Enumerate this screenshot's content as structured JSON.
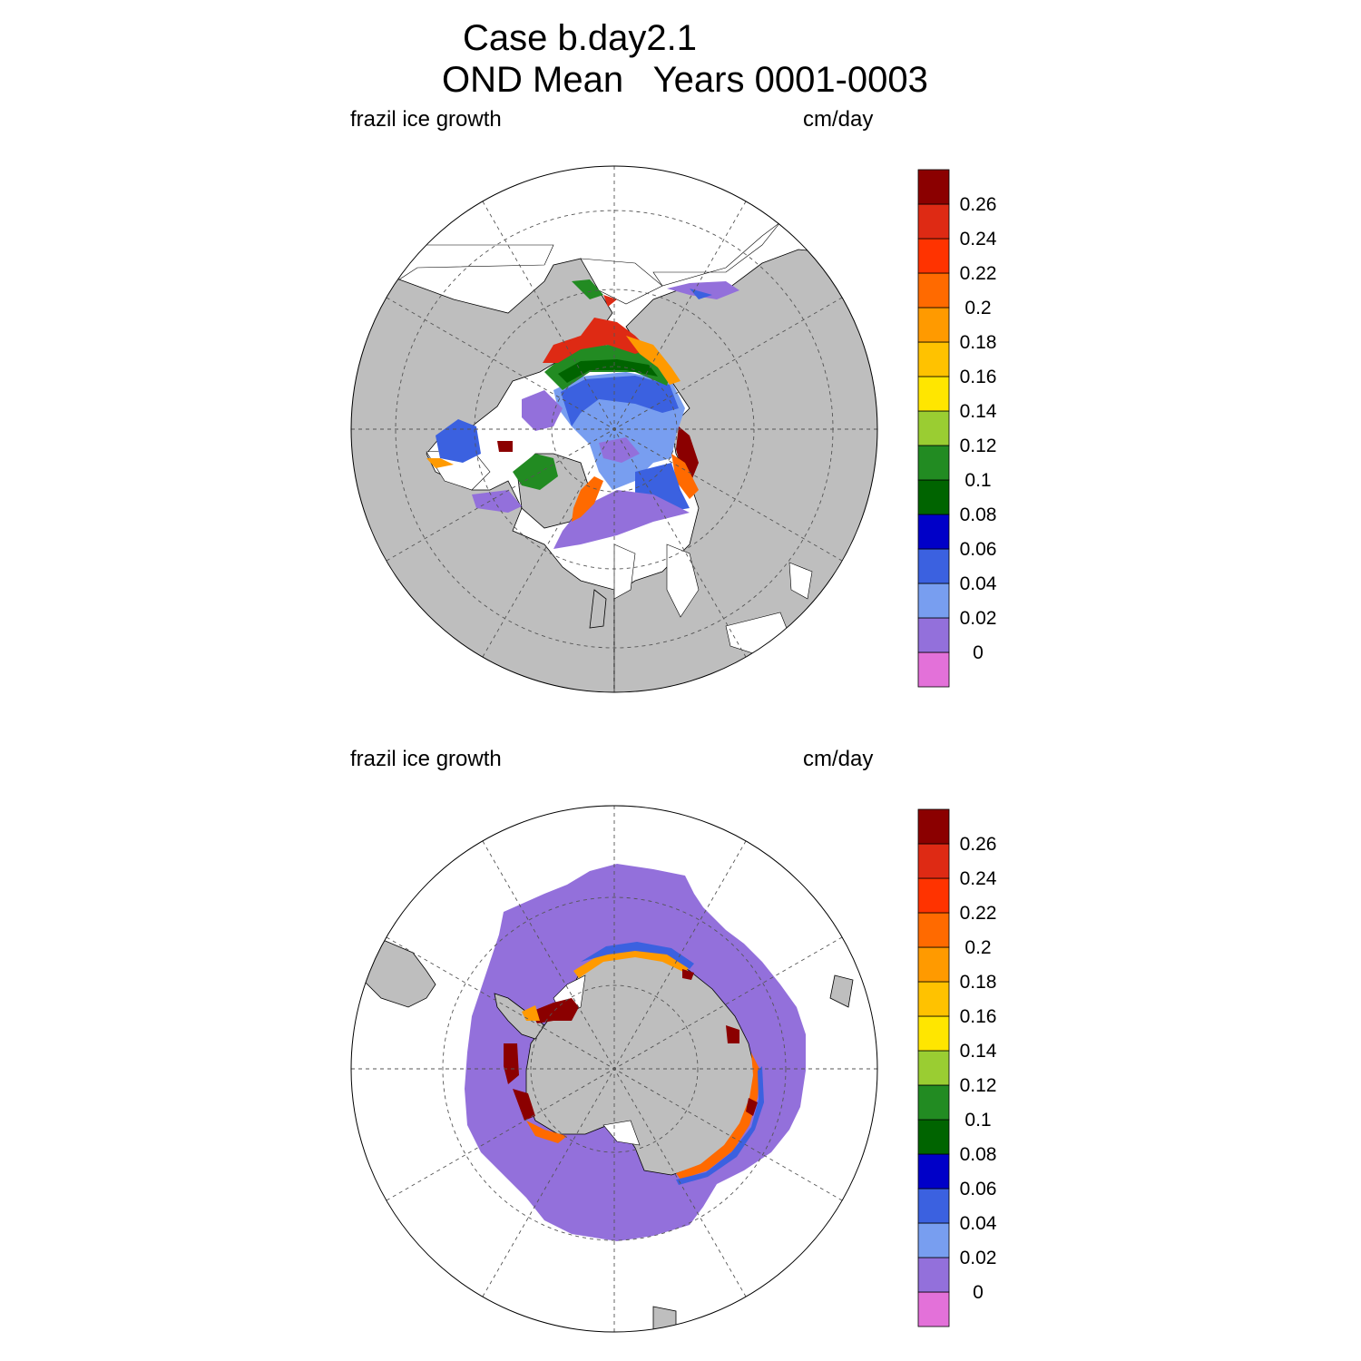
{
  "title": {
    "line1": "Case b.day2.1",
    "line2": "OND Mean   Years 0001-0003"
  },
  "panels": [
    {
      "hemisphere": "north",
      "left_label": "frazil ice growth",
      "right_label": "cm/day"
    },
    {
      "hemisphere": "south",
      "left_label": "frazil ice growth",
      "right_label": "cm/day"
    }
  ],
  "colorbar": {
    "levels": [
      "0",
      "0.02",
      "0.04",
      "0.06",
      "0.08",
      "0.1",
      "0.12",
      "0.14",
      "0.16",
      "0.18",
      "0.2",
      "0.22",
      "0.24",
      "0.26"
    ],
    "colors": [
      "#e371d9",
      "#9370db",
      "#789ef0",
      "#3b61e0",
      "#0000c8",
      "#006400",
      "#228b22",
      "#9acd32",
      "#ffe600",
      "#ffc200",
      "#ff9a00",
      "#ff6a00",
      "#ff3300",
      "#de2a14",
      "#8b0000"
    ]
  },
  "map_colors": {
    "land": "#bebebe",
    "ocean": "#ffffff",
    "outline": "#000000",
    "grid": "#555555"
  }
}
